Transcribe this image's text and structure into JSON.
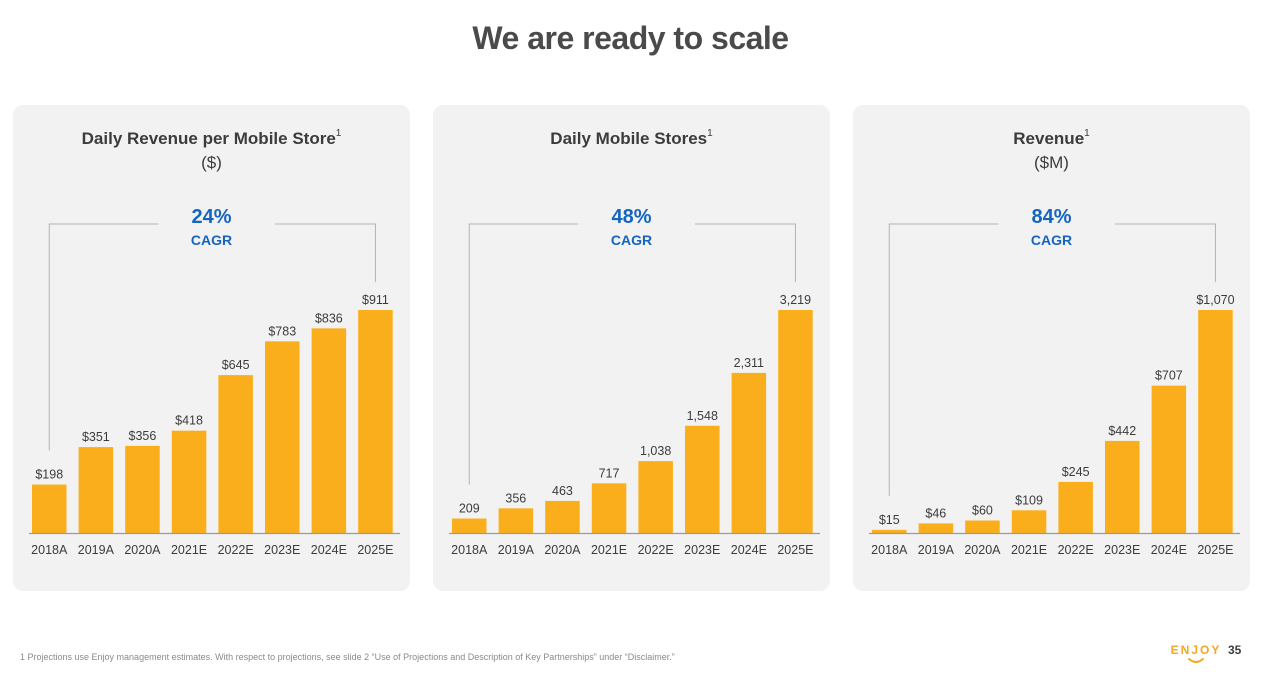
{
  "page": {
    "title": "We are ready to scale",
    "footnote": "1 Projections use Enjoy management estimates.  With respect to projections, see slide 2 “Use of Projections and Description of Key Partnerships” under “Disclaimer.”",
    "logo_text": "ENJOY",
    "page_number": "35"
  },
  "colors": {
    "bar": "#FBAE1B",
    "cagr": "#1565C0",
    "title": "#4A4A4A",
    "panel_bg": "#F2F2F2"
  },
  "panels": [
    {
      "title": "Daily Revenue per Mobile Store",
      "superscript": "1",
      "subtitle": "($)",
      "cagr_value": "24%",
      "cagr_label": "CAGR"
    },
    {
      "title": "Daily Mobile Stores",
      "superscript": "1",
      "subtitle": "",
      "cagr_value": "48%",
      "cagr_label": "CAGR"
    },
    {
      "title": "Revenue",
      "superscript": "1",
      "subtitle": "($M)",
      "cagr_value": "84%",
      "cagr_label": "CAGR"
    }
  ],
  "chart_data": [
    {
      "type": "bar",
      "title": "Daily Revenue per Mobile Store",
      "subtitle": "($)",
      "categories": [
        "2018A",
        "2019A",
        "2020A",
        "2021E",
        "2022E",
        "2023E",
        "2024E",
        "2025E"
      ],
      "values": [
        198,
        351,
        356,
        418,
        645,
        783,
        836,
        911
      ],
      "value_labels": [
        "$198",
        "$351",
        "$356",
        "$418",
        "$645",
        "$783",
        "$836",
        "$911"
      ],
      "annotation": "24% CAGR",
      "ylim": [
        0,
        911
      ]
    },
    {
      "type": "bar",
      "title": "Daily Mobile Stores",
      "categories": [
        "2018A",
        "2019A",
        "2020A",
        "2021E",
        "2022E",
        "2023E",
        "2024E",
        "2025E"
      ],
      "values": [
        209,
        356,
        463,
        717,
        1038,
        1548,
        2311,
        3219
      ],
      "value_labels": [
        "209",
        "356",
        "463",
        "717",
        "1,038",
        "1,548",
        "2,311",
        "3,219"
      ],
      "annotation": "48% CAGR",
      "ylim": [
        0,
        3219
      ]
    },
    {
      "type": "bar",
      "title": "Revenue",
      "subtitle": "($M)",
      "categories": [
        "2018A",
        "2019A",
        "2020A",
        "2021E",
        "2022E",
        "2023E",
        "2024E",
        "2025E"
      ],
      "values": [
        15,
        46,
        60,
        109,
        245,
        442,
        707,
        1070
      ],
      "value_labels": [
        "$15",
        "$46",
        "$60",
        "$109",
        "$245",
        "$442",
        "$707",
        "$1,070"
      ],
      "annotation": "84% CAGR",
      "ylim": [
        0,
        1070
      ]
    }
  ]
}
